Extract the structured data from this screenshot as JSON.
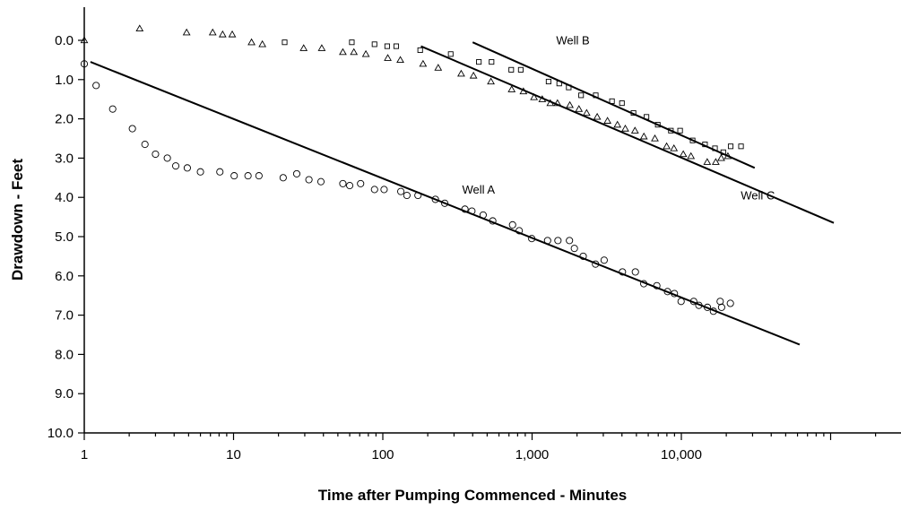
{
  "chart_data": {
    "type": "scatter",
    "title": "",
    "xlabel": "Time after Pumping Commenced - Minutes",
    "ylabel": "Drawdown - Feet",
    "xscale": "log",
    "xlim": [
      1,
      100000
    ],
    "ylim": [
      10.0,
      -0.5
    ],
    "y_inverted": true,
    "grid": false,
    "xticks": [
      1,
      10,
      100,
      1000,
      10000
    ],
    "xtick_labels": [
      "1",
      "10",
      "100",
      "1,000",
      "10,000"
    ],
    "yticks": [
      0,
      1,
      2,
      3,
      4,
      5,
      6,
      7,
      8,
      9,
      10
    ],
    "ytick_labels": [
      "0.0",
      "1.0",
      "2.0",
      "3.0",
      "4.0",
      "5.0",
      "6.0",
      "7.0",
      "8.0",
      "9.0",
      "10.0"
    ],
    "series": [
      {
        "name": "Well A",
        "marker": "circle",
        "points": [
          [
            1.0,
            0.6
          ],
          [
            1.2,
            1.15
          ],
          [
            1.55,
            1.75
          ],
          [
            2.1,
            2.25
          ],
          [
            2.55,
            2.65
          ],
          [
            3.0,
            2.9
          ],
          [
            3.6,
            3.0
          ],
          [
            4.1,
            3.2
          ],
          [
            4.9,
            3.25
          ],
          [
            6.0,
            3.35
          ],
          [
            8.1,
            3.35
          ],
          [
            10.1,
            3.45
          ],
          [
            12.5,
            3.45
          ],
          [
            14.8,
            3.45
          ],
          [
            21.5,
            3.5
          ],
          [
            26.5,
            3.4
          ],
          [
            32.0,
            3.55
          ],
          [
            38.5,
            3.6
          ],
          [
            54,
            3.65
          ],
          [
            60,
            3.7
          ],
          [
            71,
            3.65
          ],
          [
            88,
            3.8
          ],
          [
            102,
            3.8
          ],
          [
            132,
            3.85
          ],
          [
            145,
            3.95
          ],
          [
            172,
            3.95
          ],
          [
            225,
            4.05
          ],
          [
            260,
            4.15
          ],
          [
            355,
            4.3
          ],
          [
            395,
            4.35
          ],
          [
            470,
            4.45
          ],
          [
            545,
            4.6
          ],
          [
            740,
            4.7
          ],
          [
            820,
            4.85
          ],
          [
            995,
            5.05
          ],
          [
            1270,
            5.1
          ],
          [
            1490,
            5.1
          ],
          [
            1780,
            5.1
          ],
          [
            1920,
            5.3
          ],
          [
            2200,
            5.5
          ],
          [
            2660,
            5.7
          ],
          [
            3040,
            5.6
          ],
          [
            4030,
            5.9
          ],
          [
            4920,
            5.9
          ],
          [
            5600,
            6.2
          ],
          [
            6850,
            6.25
          ],
          [
            8080,
            6.4
          ],
          [
            8980,
            6.45
          ],
          [
            9960,
            6.65
          ],
          [
            12100,
            6.65
          ],
          [
            13100,
            6.75
          ],
          [
            14950,
            6.8
          ],
          [
            16400,
            6.9
          ],
          [
            18200,
            6.65
          ],
          [
            18600,
            6.8
          ],
          [
            21300,
            6.7
          ]
        ],
        "fit_line": [
          [
            1.1,
            0.55
          ],
          [
            62000,
            7.75
          ]
        ]
      },
      {
        "name": "Well B",
        "marker": "square",
        "points": [
          [
            22,
            0.05
          ],
          [
            62,
            0.05
          ],
          [
            88,
            0.1
          ],
          [
            107,
            0.15
          ],
          [
            123,
            0.15
          ],
          [
            178,
            0.25
          ],
          [
            285,
            0.35
          ],
          [
            440,
            0.55
          ],
          [
            535,
            0.55
          ],
          [
            725,
            0.75
          ],
          [
            840,
            0.75
          ],
          [
            1290,
            1.05
          ],
          [
            1520,
            1.1
          ],
          [
            1760,
            1.2
          ],
          [
            2130,
            1.4
          ],
          [
            2670,
            1.4
          ],
          [
            3430,
            1.55
          ],
          [
            4000,
            1.6
          ],
          [
            4780,
            1.85
          ],
          [
            5840,
            1.95
          ],
          [
            6950,
            2.15
          ],
          [
            8510,
            2.3
          ],
          [
            9810,
            2.3
          ],
          [
            11900,
            2.55
          ],
          [
            14400,
            2.65
          ],
          [
            16800,
            2.75
          ],
          [
            19100,
            2.85
          ],
          [
            21400,
            2.7
          ],
          [
            25100,
            2.7
          ]
        ],
        "fit_line": [
          [
            400,
            0.05
          ],
          [
            31000,
            3.25
          ]
        ]
      },
      {
        "name": "Well C",
        "marker": "triangle",
        "points": [
          [
            1.0,
            0.0
          ],
          [
            2.35,
            -0.3
          ],
          [
            4.85,
            -0.2
          ],
          [
            7.25,
            -0.2
          ],
          [
            8.45,
            -0.15
          ],
          [
            9.8,
            -0.15
          ],
          [
            13.2,
            0.05
          ],
          [
            15.6,
            0.1
          ],
          [
            29.5,
            0.2
          ],
          [
            39.0,
            0.2
          ],
          [
            54,
            0.3
          ],
          [
            64,
            0.3
          ],
          [
            77,
            0.35
          ],
          [
            108,
            0.45
          ],
          [
            131,
            0.5
          ],
          [
            186,
            0.6
          ],
          [
            235,
            0.7
          ],
          [
            335,
            0.85
          ],
          [
            405,
            0.9
          ],
          [
            530,
            1.05
          ],
          [
            730,
            1.25
          ],
          [
            875,
            1.3
          ],
          [
            1030,
            1.45
          ],
          [
            1170,
            1.5
          ],
          [
            1325,
            1.6
          ],
          [
            1480,
            1.6
          ],
          [
            1790,
            1.65
          ],
          [
            2060,
            1.75
          ],
          [
            2320,
            1.85
          ],
          [
            2730,
            1.95
          ],
          [
            3200,
            2.05
          ],
          [
            3730,
            2.15
          ],
          [
            4210,
            2.25
          ],
          [
            4890,
            2.3
          ],
          [
            5610,
            2.45
          ],
          [
            6650,
            2.5
          ],
          [
            7970,
            2.7
          ],
          [
            8920,
            2.75
          ],
          [
            10300,
            2.9
          ],
          [
            11600,
            2.95
          ],
          [
            14900,
            3.1
          ],
          [
            17000,
            3.1
          ],
          [
            18500,
            3.0
          ],
          [
            20500,
            2.95
          ]
        ],
        "fit_line": [
          [
            180,
            0.15
          ],
          [
            105000,
            4.65
          ]
        ]
      }
    ],
    "annotations": [
      {
        "text": "Well A",
        "x": 340,
        "y": 3.9
      },
      {
        "text": "Well B",
        "x": 1450,
        "y": 0.1
      },
      {
        "text": "Well C",
        "x": 25000,
        "y": 4.05
      }
    ]
  }
}
